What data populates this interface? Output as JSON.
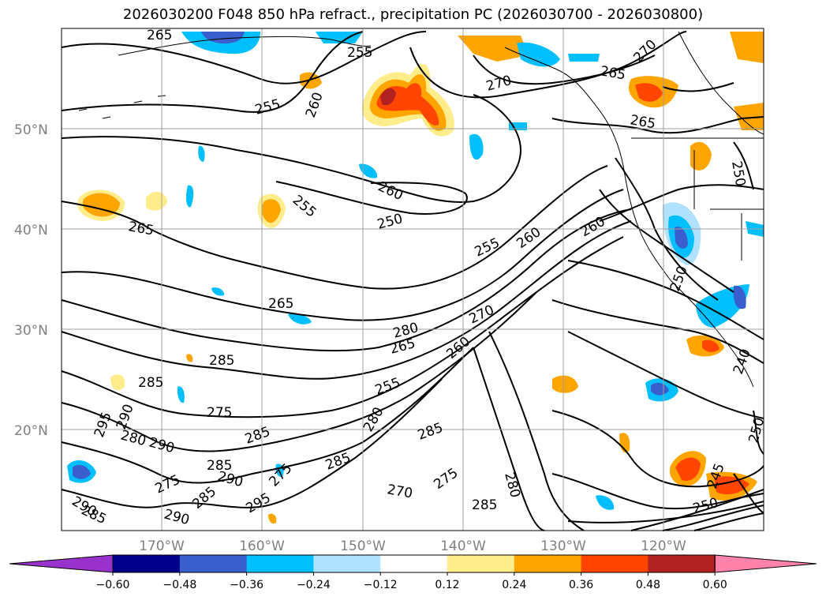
{
  "title": "2026030200 F048 850 hPa refract., precipitation PC (2026030700 - 2026030800)",
  "lat_labels": [
    "50°N",
    "40°N",
    "30°N",
    "20°N"
  ],
  "lon_labels": [
    "170°W",
    "160°W",
    "150°W",
    "140°W",
    "130°W",
    "120°W"
  ],
  "contour_labels": [
    "265",
    "255",
    "260",
    "270",
    "265",
    "265",
    "270",
    "250",
    "255",
    "260",
    "250",
    "265",
    "255",
    "260",
    "250",
    "255",
    "260",
    "265",
    "280",
    "270",
    "265",
    "255",
    "260",
    "285",
    "285",
    "275",
    "295",
    "290",
    "280",
    "290",
    "275",
    "285",
    "290",
    "285",
    "295",
    "285",
    "280",
    "285",
    "275",
    "285",
    "270",
    "275",
    "280",
    "290",
    "285",
    "290",
    "245",
    "250",
    "240",
    "250",
    "285"
  ],
  "colorbar": {
    "ticks": [
      "−0.60",
      "−0.48",
      "−0.36",
      "−0.24",
      "−0.12",
      "0.12",
      "0.24",
      "0.36",
      "0.48",
      "0.60"
    ],
    "colors": [
      "#9932cc",
      "#00008b",
      "#3a5fcd",
      "#00bfff",
      "#b0e2ff",
      "#ffffff",
      "#ffec8b",
      "#ffa500",
      "#ff4500",
      "#b22222",
      "#ff82ab"
    ]
  }
}
